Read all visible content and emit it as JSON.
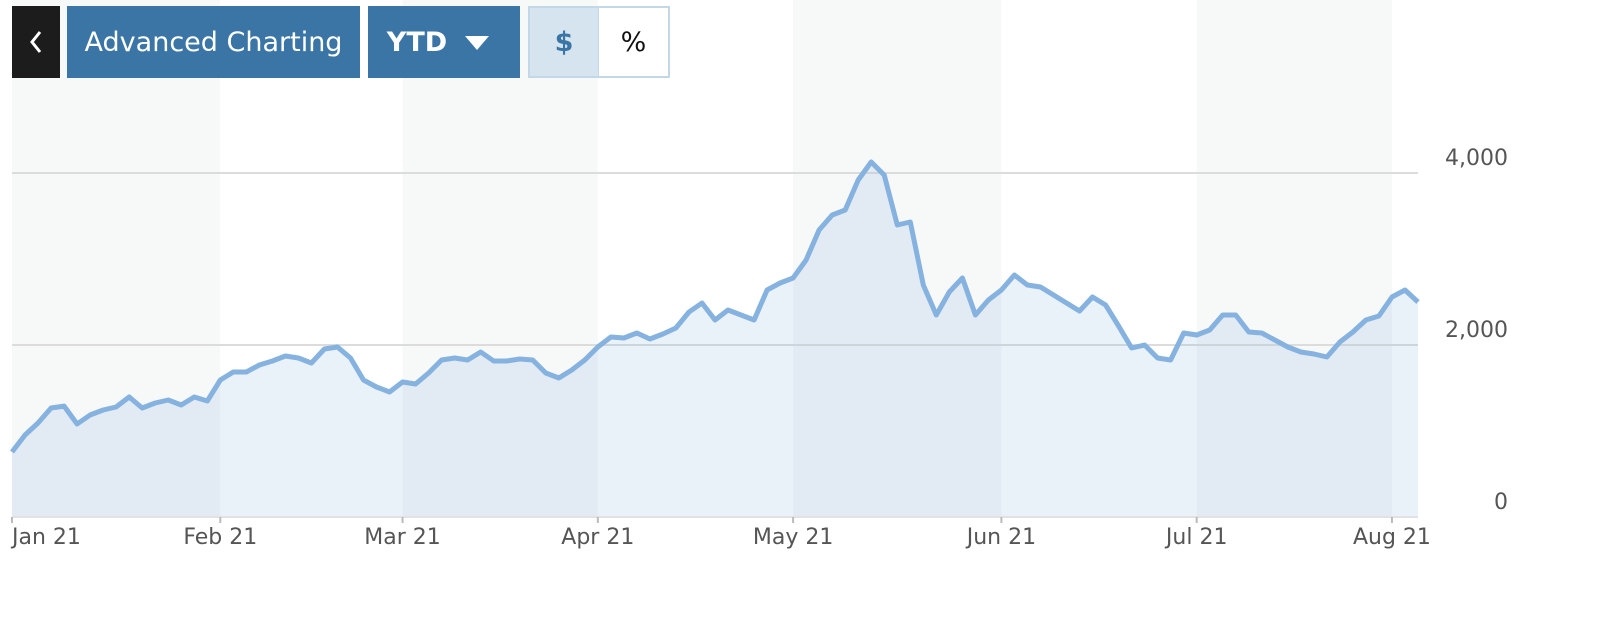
{
  "toolbar": {
    "title": "Advanced Charting",
    "range": "YTD",
    "units": [
      "$",
      "%"
    ]
  },
  "chart_data": {
    "type": "area",
    "categories": [
      "Jan 21",
      null,
      null,
      null,
      null,
      null,
      null,
      null,
      null,
      null,
      null,
      null,
      null,
      null,
      null,
      null,
      "Feb 21",
      null,
      null,
      null,
      null,
      null,
      null,
      null,
      null,
      null,
      null,
      null,
      null,
      null,
      "Mar 21",
      null,
      null,
      null,
      null,
      null,
      null,
      null,
      null,
      null,
      null,
      null,
      null,
      null,
      null,
      "Apr 21",
      null,
      null,
      null,
      null,
      null,
      null,
      null,
      null,
      null,
      null,
      null,
      null,
      null,
      null,
      "May 21",
      null,
      null,
      null,
      null,
      null,
      null,
      null,
      null,
      null,
      null,
      null,
      null,
      null,
      null,
      null,
      "Jun 21",
      null,
      null,
      null,
      null,
      null,
      null,
      null,
      null,
      null,
      null,
      null,
      null,
      null,
      null,
      "Jul 21",
      null,
      null,
      null,
      null,
      null,
      null,
      null,
      null,
      null,
      null,
      null,
      null,
      null,
      null,
      "Aug 21",
      null,
      null
    ],
    "values": [
      756,
      953,
      1093,
      1267,
      1290,
      1081,
      1186,
      1244,
      1279,
      1395,
      1267,
      1326,
      1360,
      1302,
      1395,
      1349,
      1593,
      1686,
      1686,
      1767,
      1814,
      1872,
      1849,
      1791,
      1953,
      1977,
      1849,
      1593,
      1512,
      1453,
      1570,
      1547,
      1674,
      1826,
      1849,
      1826,
      1919,
      1814,
      1814,
      1837,
      1826,
      1674,
      1616,
      1709,
      1826,
      1977,
      2093,
      2081,
      2140,
      2070,
      2128,
      2198,
      2384,
      2488,
      2291,
      2407,
      2349,
      2291,
      2640,
      2721,
      2779,
      2988,
      3337,
      3512,
      3570,
      3919,
      4128,
      3977,
      3395,
      3430,
      2698,
      2349,
      2616,
      2779,
      2349,
      2523,
      2640,
      2814,
      2698,
      2674,
      2581,
      2488,
      2395,
      2558,
      2465,
      2221,
      1965,
      2000,
      1849,
      1826,
      2140,
      2116,
      2174,
      2349,
      2349,
      2151,
      2140,
      2058,
      1977,
      1919,
      1895,
      1860,
      2035,
      2151,
      2291,
      2337,
      2558,
      2640,
      2500
    ],
    "color": "#86b2e0",
    "ylim": [
      0,
      6000
    ],
    "yticks": [
      0,
      {
        "value": 2000,
        "label": "2,000"
      },
      {
        "value": 4000,
        "label": "4,000"
      }
    ],
    "grid": true
  }
}
